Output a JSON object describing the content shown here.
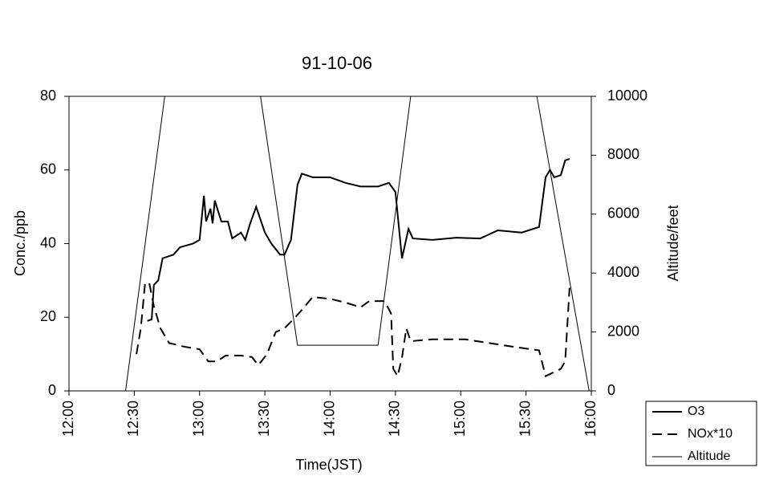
{
  "chart_data": {
    "type": "line",
    "title": "91-10-06",
    "xlabel": "Time(JST)",
    "ylabel": "Conc./ppb",
    "y2label": "Altitude/feet",
    "xlim": [
      "12:00",
      "16:00"
    ],
    "xticks": [
      "12:00",
      "12:30",
      "13:00",
      "13:30",
      "14:00",
      "14:30",
      "15:00",
      "15:30",
      "16:00"
    ],
    "ylim": [
      0,
      80
    ],
    "yticks": [
      0,
      20,
      40,
      60,
      80
    ],
    "y2lim": [
      0,
      10000
    ],
    "y2ticks": [
      0,
      2000,
      4000,
      6000,
      8000,
      10000
    ],
    "legend": "outside-bottom-right",
    "series": [
      {
        "name": "O3",
        "color": "#000000",
        "linestyle": "solid",
        "linewidth": 2,
        "x": [
          "12:36",
          "12:38",
          "12:39",
          "12:41",
          "12:43",
          "12:48",
          "12:51",
          "12:57",
          "13:00",
          "13:02",
          "13:03",
          "13:05",
          "13:06",
          "13:07",
          "13:10",
          "13:13",
          "13:15",
          "13:19",
          "13:21",
          "13:23",
          "13:26",
          "13:30",
          "13:33",
          "13:37",
          "13:39",
          "13:42",
          "13:45",
          "13:47",
          "13:52",
          "14:00",
          "14:07",
          "14:14",
          "14:22",
          "14:27",
          "14:30",
          "14:33",
          "14:36",
          "14:38",
          "14:47",
          "14:58",
          "15:09",
          "15:17",
          "15:28",
          "15:36",
          "15:39",
          "15:41",
          "15:43",
          "15:46",
          "15:48",
          "15:50"
        ],
        "values": [
          19,
          19.4,
          28.8,
          30,
          36,
          37,
          39,
          40,
          41,
          53,
          46,
          49.5,
          45.5,
          51.7,
          46,
          46,
          41.4,
          43,
          41,
          45,
          50,
          43,
          40,
          37,
          37,
          41,
          56,
          59,
          58,
          58,
          56.5,
          55.5,
          55.5,
          56.5,
          54,
          36,
          44,
          41.4,
          41,
          41.6,
          41.4,
          43.6,
          43,
          44.5,
          58,
          60,
          58,
          58.6,
          62.6,
          63
        ]
      },
      {
        "name": "NOx*10",
        "color": "#000000",
        "linestyle": "dashed",
        "linewidth": 2,
        "x": [
          "12:31",
          "12:33",
          "12:35",
          "12:37",
          "12:39",
          "12:42",
          "12:46",
          "12:53",
          "13:00",
          "13:04",
          "13:08",
          "13:12",
          "13:19",
          "13:24",
          "13:27",
          "13:31",
          "13:35",
          "13:39",
          "13:44",
          "13:47",
          "13:52",
          "14:00",
          "14:07",
          "14:14",
          "14:18",
          "14:25",
          "14:28",
          "14:29",
          "14:31",
          "14:33",
          "14:35",
          "14:37",
          "14:47",
          "15:02",
          "15:13",
          "15:24",
          "15:36",
          "15:39",
          "15:46",
          "15:48",
          "15:50"
        ],
        "values": [
          10,
          17,
          29.5,
          29,
          23,
          17,
          13,
          12,
          11.3,
          8,
          8,
          9.6,
          9.6,
          9.2,
          7,
          10,
          16,
          17,
          20,
          22,
          25.5,
          25,
          24,
          22.7,
          24.4,
          24.4,
          21,
          6,
          4,
          9,
          17,
          13.5,
          14,
          14,
          13,
          12,
          11,
          4,
          6,
          8,
          28
        ]
      },
      {
        "name": "Altitude",
        "color": "#000000",
        "linestyle": "solid",
        "linewidth": 1,
        "axis": "y2",
        "x": [
          "12:26",
          "12:44",
          "13:28",
          "13:45",
          "14:22",
          "14:37",
          "15:35",
          "15:59"
        ],
        "values": [
          0,
          10000,
          10000,
          1550,
          1550,
          10000,
          10000,
          0
        ]
      }
    ]
  }
}
